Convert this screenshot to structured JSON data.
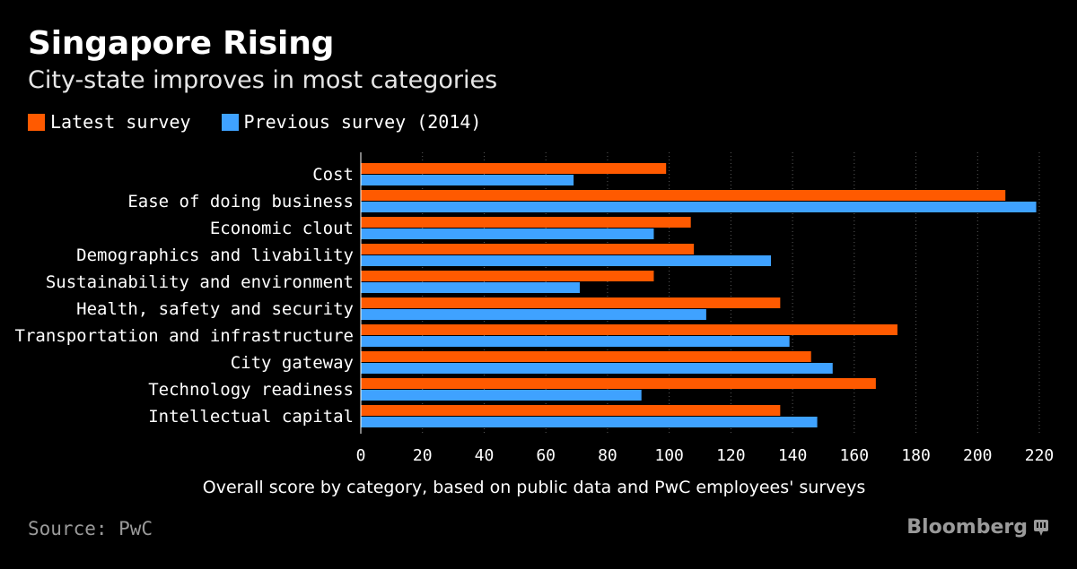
{
  "title": "Singapore Rising",
  "subtitle": "City-state improves in most categories",
  "source": "Source: PwC",
  "brand": "Bloomberg",
  "chart_data": {
    "type": "bar",
    "orientation": "horizontal",
    "categories": [
      "Cost",
      "Ease of doing business",
      "Economic clout",
      "Demographics and livability",
      "Sustainability and environment",
      "Health, safety and security",
      "Transportation and infrastructure",
      "City gateway",
      "Technology readiness",
      "Intellectual capital"
    ],
    "series": [
      {
        "name": "Latest survey",
        "color": "#ff5a00",
        "values": [
          99,
          209,
          107,
          108,
          95,
          136,
          174,
          146,
          167,
          136
        ]
      },
      {
        "name": "Previous survey (2014)",
        "color": "#3fa2ff",
        "values": [
          69,
          219,
          95,
          133,
          71,
          112,
          139,
          153,
          91,
          148
        ]
      }
    ],
    "xlabel": "Overall score by category, based on public data and PwC employees' surveys",
    "xlim": [
      0,
      220
    ],
    "xticks": [
      0,
      20,
      40,
      60,
      80,
      100,
      120,
      140,
      160,
      180,
      200,
      220
    ],
    "grid": true,
    "legend_position": "top-left"
  }
}
